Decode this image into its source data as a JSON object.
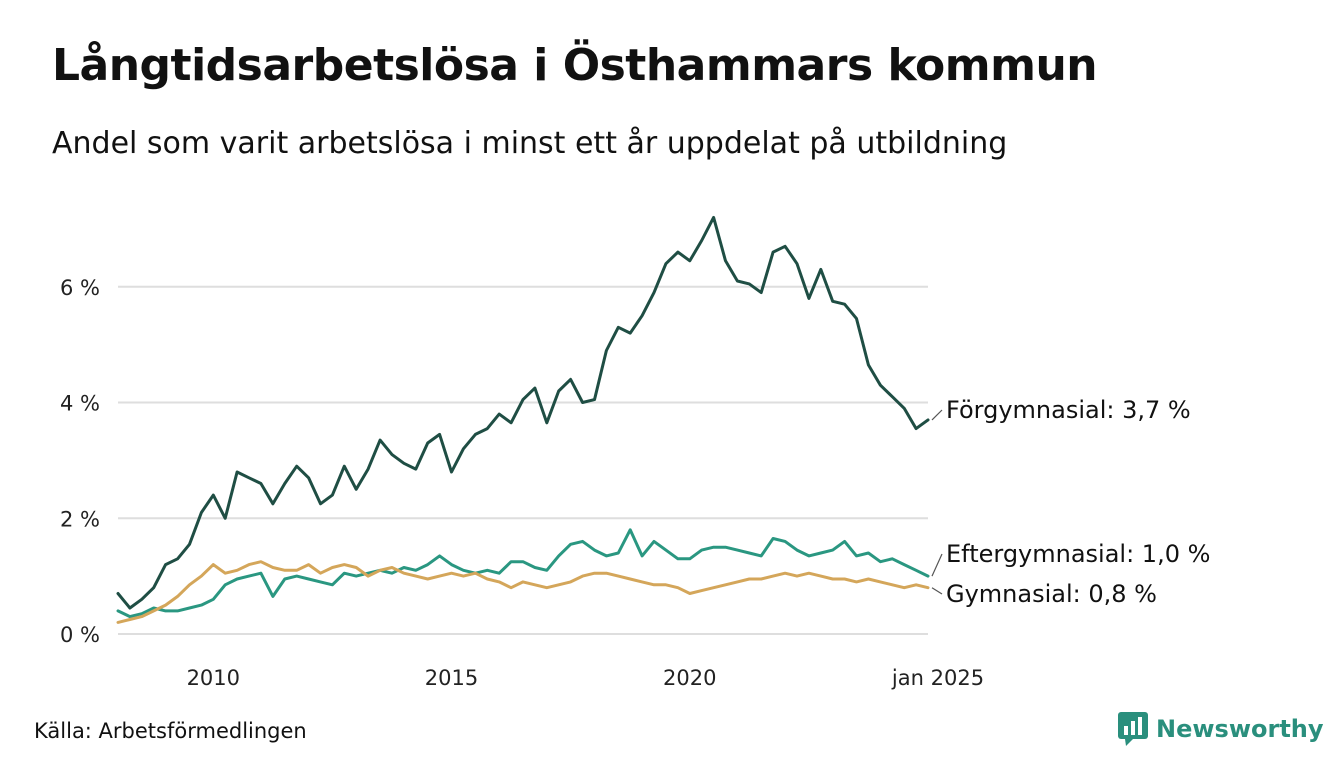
{
  "header": {
    "title": "Långtidsarbetslösa i Östhammars kommun",
    "subtitle": "Andel som varit arbetslösa i minst ett år uppdelat på utbildning"
  },
  "footer": {
    "source": "Källa: Arbetsförmedlingen",
    "brand": "Newsworthy"
  },
  "chart_data": {
    "type": "line",
    "title": "Långtidsarbetslösa i Östhammars kommun",
    "subtitle": "Andel som varit arbetslösa i minst ett år uppdelat på utbildning",
    "y_ticks": [
      {
        "value": 0,
        "label": "0 %"
      },
      {
        "value": 2,
        "label": "2 %"
      },
      {
        "value": 4,
        "label": "4 %"
      },
      {
        "value": 6,
        "label": "6 %"
      }
    ],
    "x_ticks": [
      {
        "value": 2010,
        "label": "2010"
      },
      {
        "value": 2015,
        "label": "2015"
      },
      {
        "value": 2020,
        "label": "2020"
      },
      {
        "value": 2025.0,
        "label": "jan 2025"
      }
    ],
    "ylim": [
      0,
      7.5
    ],
    "xlim": [
      2008.0,
      2025.0
    ],
    "grid": true,
    "series": [
      {
        "name": "Förgymnasial",
        "end_label": "Förgymnasial: 3,7 %",
        "color": "#1f4e44",
        "x": [
          2008.0,
          2008.25,
          2008.5,
          2008.75,
          2009.0,
          2009.25,
          2009.5,
          2009.75,
          2010.0,
          2010.25,
          2010.5,
          2010.75,
          2011.0,
          2011.25,
          2011.5,
          2011.75,
          2012.0,
          2012.25,
          2012.5,
          2012.75,
          2013.0,
          2013.25,
          2013.5,
          2013.75,
          2014.0,
          2014.25,
          2014.5,
          2014.75,
          2015.0,
          2015.25,
          2015.5,
          2015.75,
          2016.0,
          2016.25,
          2016.5,
          2016.75,
          2017.0,
          2017.25,
          2017.5,
          2017.75,
          2018.0,
          2018.25,
          2018.5,
          2018.75,
          2019.0,
          2019.25,
          2019.5,
          2019.75,
          2020.0,
          2020.25,
          2020.5,
          2020.75,
          2021.0,
          2021.25,
          2021.5,
          2021.75,
          2022.0,
          2022.25,
          2022.5,
          2022.75,
          2023.0,
          2023.25,
          2023.5,
          2023.75,
          2024.0,
          2024.25,
          2024.5,
          2024.75,
          2025.0
        ],
        "values": [
          0.7,
          0.45,
          0.6,
          0.8,
          1.2,
          1.3,
          1.55,
          2.1,
          2.4,
          2.0,
          2.8,
          2.7,
          2.6,
          2.25,
          2.6,
          2.9,
          2.7,
          2.25,
          2.4,
          2.9,
          2.5,
          2.85,
          3.35,
          3.1,
          2.95,
          2.85,
          3.3,
          3.45,
          2.8,
          3.2,
          3.45,
          3.55,
          3.8,
          3.65,
          4.05,
          4.25,
          3.65,
          4.2,
          4.4,
          4.0,
          4.05,
          4.9,
          5.3,
          5.2,
          5.5,
          5.9,
          6.4,
          6.6,
          6.45,
          6.8,
          7.2,
          6.45,
          6.1,
          6.05,
          5.9,
          6.6,
          6.7,
          6.4,
          5.8,
          6.3,
          5.75,
          5.7,
          5.45,
          4.65,
          4.3,
          4.1,
          3.9,
          3.55,
          3.7
        ]
      },
      {
        "name": "Eftergymnasial",
        "end_label": "Eftergymnasial: 1,0 %",
        "color": "#2a9781",
        "x": [
          2008.0,
          2008.25,
          2008.5,
          2008.75,
          2009.0,
          2009.25,
          2009.5,
          2009.75,
          2010.0,
          2010.25,
          2010.5,
          2010.75,
          2011.0,
          2011.25,
          2011.5,
          2011.75,
          2012.0,
          2012.25,
          2012.5,
          2012.75,
          2013.0,
          2013.25,
          2013.5,
          2013.75,
          2014.0,
          2014.25,
          2014.5,
          2014.75,
          2015.0,
          2015.25,
          2015.5,
          2015.75,
          2016.0,
          2016.25,
          2016.5,
          2016.75,
          2017.0,
          2017.25,
          2017.5,
          2017.75,
          2018.0,
          2018.25,
          2018.5,
          2018.75,
          2019.0,
          2019.25,
          2019.5,
          2019.75,
          2020.0,
          2020.25,
          2020.5,
          2020.75,
          2021.0,
          2021.25,
          2021.5,
          2021.75,
          2022.0,
          2022.25,
          2022.5,
          2022.75,
          2023.0,
          2023.25,
          2023.5,
          2023.75,
          2024.0,
          2024.25,
          2024.5,
          2024.75,
          2025.0
        ],
        "values": [
          0.4,
          0.3,
          0.35,
          0.45,
          0.4,
          0.4,
          0.45,
          0.5,
          0.6,
          0.85,
          0.95,
          1.0,
          1.05,
          0.65,
          0.95,
          1.0,
          0.95,
          0.9,
          0.85,
          1.05,
          1.0,
          1.05,
          1.1,
          1.05,
          1.15,
          1.1,
          1.2,
          1.35,
          1.2,
          1.1,
          1.05,
          1.1,
          1.05,
          1.25,
          1.25,
          1.15,
          1.1,
          1.35,
          1.55,
          1.6,
          1.45,
          1.35,
          1.4,
          1.8,
          1.35,
          1.6,
          1.45,
          1.3,
          1.3,
          1.45,
          1.5,
          1.5,
          1.45,
          1.4,
          1.35,
          1.65,
          1.6,
          1.45,
          1.35,
          1.4,
          1.45,
          1.6,
          1.35,
          1.4,
          1.25,
          1.3,
          1.2,
          1.1,
          1.0
        ]
      },
      {
        "name": "Gymnasial",
        "end_label": "Gymnasial: 0,8 %",
        "color": "#d4a65a",
        "x": [
          2008.0,
          2008.25,
          2008.5,
          2008.75,
          2009.0,
          2009.25,
          2009.5,
          2009.75,
          2010.0,
          2010.25,
          2010.5,
          2010.75,
          2011.0,
          2011.25,
          2011.5,
          2011.75,
          2012.0,
          2012.25,
          2012.5,
          2012.75,
          2013.0,
          2013.25,
          2013.5,
          2013.75,
          2014.0,
          2014.25,
          2014.5,
          2014.75,
          2015.0,
          2015.25,
          2015.5,
          2015.75,
          2016.0,
          2016.25,
          2016.5,
          2016.75,
          2017.0,
          2017.25,
          2017.5,
          2017.75,
          2018.0,
          2018.25,
          2018.5,
          2018.75,
          2019.0,
          2019.25,
          2019.5,
          2019.75,
          2020.0,
          2020.25,
          2020.5,
          2020.75,
          2021.0,
          2021.25,
          2021.5,
          2021.75,
          2022.0,
          2022.25,
          2022.5,
          2022.75,
          2023.0,
          2023.25,
          2023.5,
          2023.75,
          2024.0,
          2024.25,
          2024.5,
          2024.75,
          2025.0
        ],
        "values": [
          0.2,
          0.25,
          0.3,
          0.4,
          0.5,
          0.65,
          0.85,
          1.0,
          1.2,
          1.05,
          1.1,
          1.2,
          1.25,
          1.15,
          1.1,
          1.1,
          1.2,
          1.05,
          1.15,
          1.2,
          1.15,
          1.0,
          1.1,
          1.15,
          1.05,
          1.0,
          0.95,
          1.0,
          1.05,
          1.0,
          1.05,
          0.95,
          0.9,
          0.8,
          0.9,
          0.85,
          0.8,
          0.85,
          0.9,
          1.0,
          1.05,
          1.05,
          1.0,
          0.95,
          0.9,
          0.85,
          0.85,
          0.8,
          0.7,
          0.75,
          0.8,
          0.85,
          0.9,
          0.95,
          0.95,
          1.0,
          1.05,
          1.0,
          1.05,
          1.0,
          0.95,
          0.95,
          0.9,
          0.95,
          0.9,
          0.85,
          0.8,
          0.85,
          0.8
        ]
      }
    ]
  }
}
